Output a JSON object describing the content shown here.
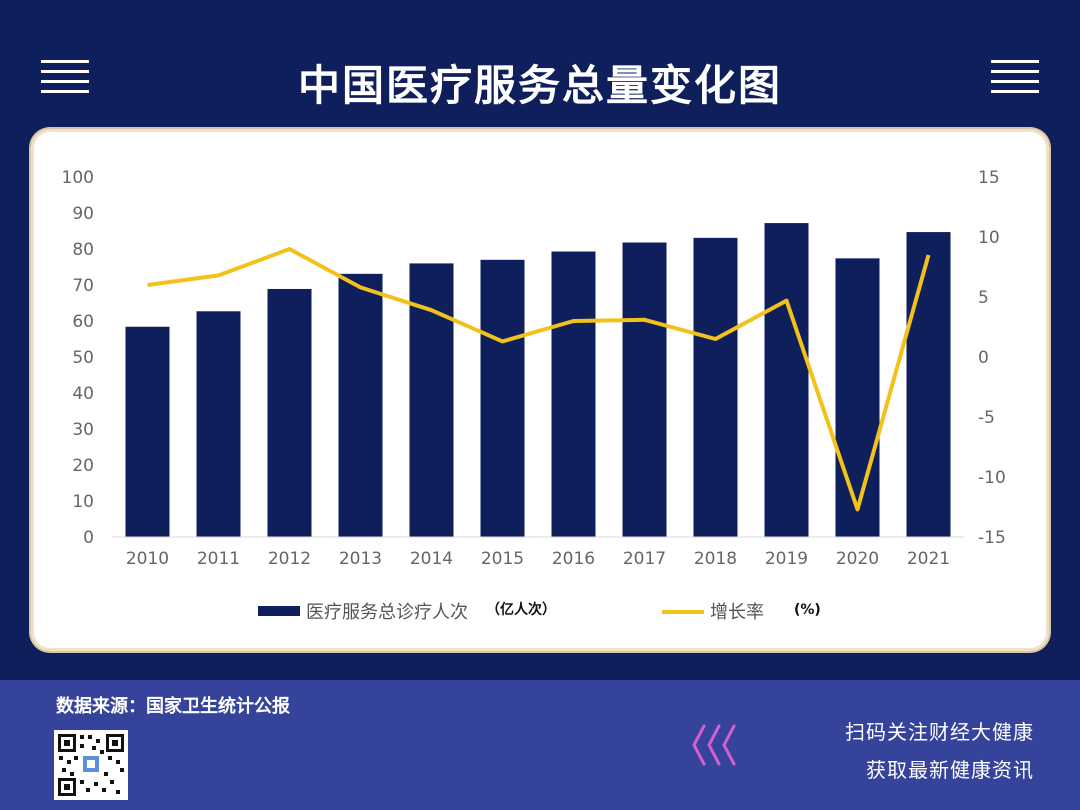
{
  "header": {
    "title": "中国医疗服务总量变化图"
  },
  "chart_data": {
    "type": "bar",
    "categories": [
      "2010",
      "2011",
      "2012",
      "2013",
      "2014",
      "2015",
      "2016",
      "2017",
      "2018",
      "2019",
      "2020",
      "2021"
    ],
    "series": [
      {
        "name": "医疗服务总诊疗人次",
        "unit": "（亿人次）",
        "type": "bar",
        "axis": "left",
        "color": "#0f1f5c",
        "values": [
          58.4,
          62.7,
          68.9,
          73.1,
          76.0,
          77.0,
          79.3,
          81.8,
          83.1,
          87.2,
          77.4,
          84.7
        ]
      },
      {
        "name": "增长率",
        "unit": "(%)",
        "type": "line",
        "axis": "right",
        "color": "#f2c21b",
        "values": [
          6.0,
          6.8,
          9.0,
          5.8,
          3.9,
          1.3,
          3.0,
          3.1,
          1.5,
          4.7,
          -12.7,
          8.5
        ]
      }
    ],
    "y_left": {
      "lim": [
        0,
        100
      ],
      "ticks": [
        "100",
        "90",
        "80",
        "70",
        "60",
        "50",
        "40",
        "30",
        "20",
        "10",
        "0"
      ]
    },
    "y_right": {
      "lim": [
        -15,
        15
      ],
      "ticks": [
        "15",
        "10",
        "5",
        "0",
        "-5",
        "-10",
        "-15"
      ]
    },
    "grid": false,
    "legend_position": "bottom"
  },
  "footer": {
    "source": "数据来源：国家卫生统计公报",
    "promo_line1": "扫码关注财经大健康",
    "promo_line2": "获取最新健康资讯",
    "chevron_color": "#d45fd0"
  }
}
